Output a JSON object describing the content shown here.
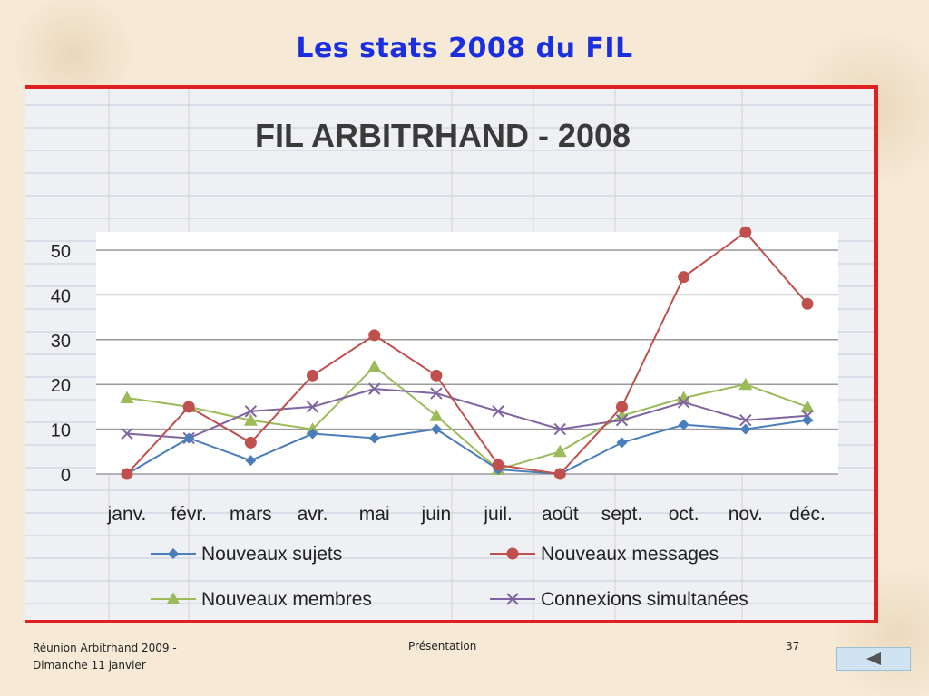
{
  "slide": {
    "title": "Les stats 2008 du FIL"
  },
  "footer": {
    "left_line1": "Réunion Arbitrhand 2009 -",
    "left_line2": "Dimanche 11 janvier",
    "center": "Présentation",
    "page_number": "37"
  },
  "nav": {
    "back_icon": "triangle-left-icon"
  },
  "colors": {
    "title": "#1a2fe0",
    "frame": "#e02020",
    "nouveaux_sujets": "#4a7ebb",
    "nouveaux_messages": "#c0504d",
    "nouveaux_membres": "#9bbb59",
    "connexions": "#8064a2"
  },
  "chart_data": {
    "type": "line",
    "title": "FIL ARBITRHAND - 2008",
    "categories": [
      "janv.",
      "févr.",
      "mars",
      "avr.",
      "mai",
      "juin",
      "juil.",
      "août",
      "sept.",
      "oct.",
      "nov.",
      "déc."
    ],
    "ylim": [
      0,
      50
    ],
    "yticks": [
      0,
      10,
      20,
      30,
      40,
      50
    ],
    "grid": true,
    "legend_position": "bottom",
    "series": [
      {
        "name": "Nouveaux sujets",
        "marker": "diamond",
        "color": "#4a7ebb",
        "values": [
          0,
          8,
          3,
          9,
          8,
          10,
          1,
          0,
          7,
          11,
          10,
          12
        ]
      },
      {
        "name": "Nouveaux messages",
        "marker": "circle",
        "color": "#c0504d",
        "values": [
          0,
          15,
          7,
          22,
          31,
          22,
          2,
          0,
          15,
          44,
          54,
          38
        ]
      },
      {
        "name": "Nouveaux membres",
        "marker": "triangle",
        "color": "#9bbb59",
        "values": [
          17,
          15,
          12,
          10,
          24,
          13,
          1,
          5,
          13,
          17,
          20,
          15
        ]
      },
      {
        "name": "Connexions simultanées",
        "marker": "x",
        "color": "#8064a2",
        "values": [
          9,
          8,
          14,
          15,
          19,
          18,
          14,
          10,
          12,
          16,
          12,
          13
        ]
      }
    ]
  }
}
